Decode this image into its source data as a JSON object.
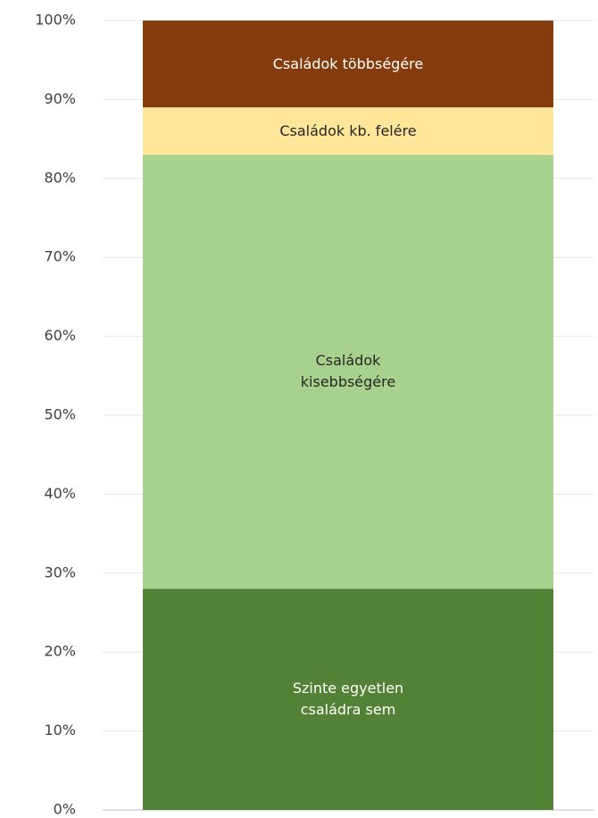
{
  "chart_data": {
    "type": "stacked_bar",
    "categories": [
      null
    ],
    "series": [
      {
        "name": "Szinte egyetlen családra sem",
        "color": "#538135",
        "values": [
          28
        ]
      },
      {
        "name": "Családok kisebbségére",
        "color": "#a9d18e",
        "values": [
          55
        ]
      },
      {
        "name": "Családok kb. felére",
        "color": "#ffe699",
        "values": [
          6
        ]
      },
      {
        "name": "Családok többségére",
        "color": "#843c0c",
        "values": [
          11
        ]
      }
    ],
    "ylim": [
      0,
      100
    ],
    "yticks": [
      {
        "value": 0,
        "label": "0%"
      },
      {
        "value": 10,
        "label": "10%"
      },
      {
        "value": 20,
        "label": "20%"
      },
      {
        "value": 30,
        "label": "30%"
      },
      {
        "value": 40,
        "label": "40%"
      },
      {
        "value": 50,
        "label": "50%"
      },
      {
        "value": 60,
        "label": "60%"
      },
      {
        "value": 70,
        "label": "70%"
      },
      {
        "value": 80,
        "label": "80%"
      },
      {
        "value": 90,
        "label": "90%"
      },
      {
        "value": 100,
        "label": "100%"
      }
    ],
    "grid": true
  }
}
